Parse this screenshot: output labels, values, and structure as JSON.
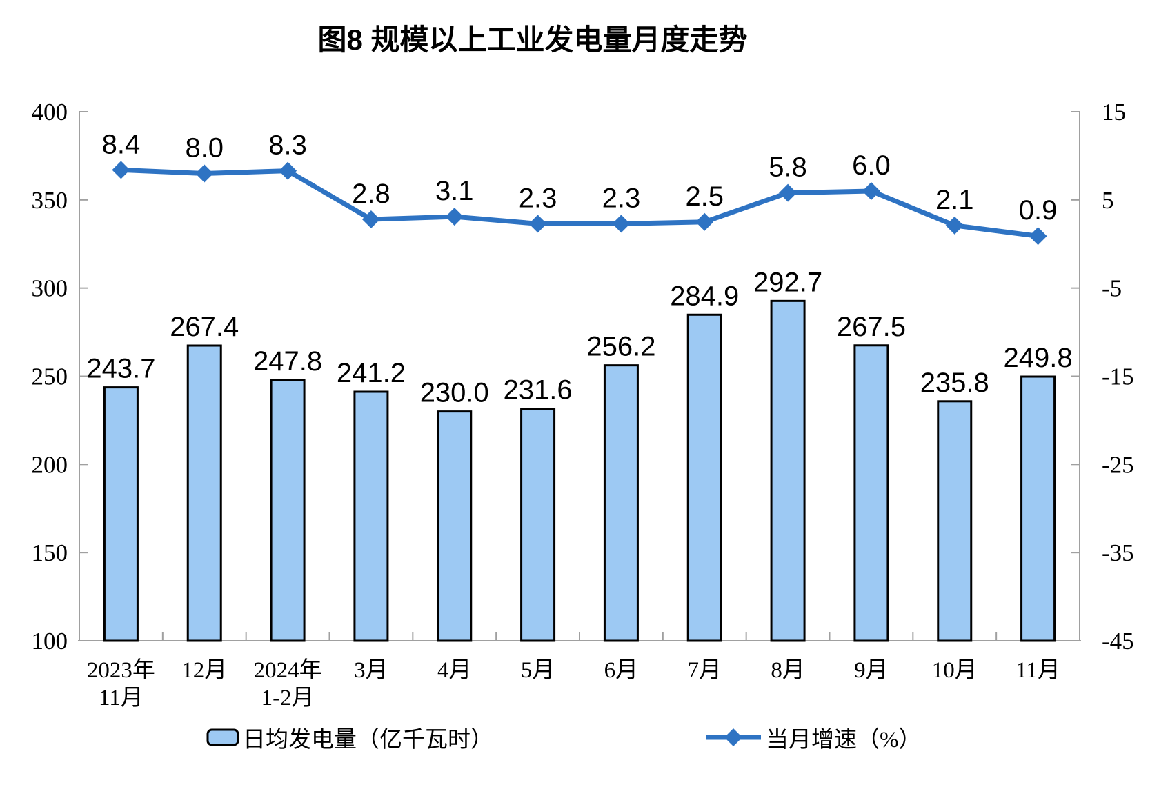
{
  "title": "图8 规模以上工业发电量月度走势",
  "colors": {
    "bar_fill": "#9DC9F3",
    "bar_border": "#000000",
    "line": "#2E73C3",
    "axis": "#A0A0A0",
    "text": "#000000",
    "background": "#FFFFFF"
  },
  "legend": {
    "bar_label": "日均发电量（亿千瓦时）",
    "line_label": "当月增速（%）"
  },
  "chart_data": {
    "type": "bar+line",
    "title": "图8 规模以上工业发电量月度走势",
    "categories": [
      [
        "2023年",
        "11月"
      ],
      [
        "12月"
      ],
      [
        "2024年",
        "1-2月"
      ],
      [
        "3月"
      ],
      [
        "4月"
      ],
      [
        "5月"
      ],
      [
        "6月"
      ],
      [
        "7月"
      ],
      [
        "8月"
      ],
      [
        "9月"
      ],
      [
        "10月"
      ],
      [
        "11月"
      ]
    ],
    "series": [
      {
        "name": "日均发电量（亿千瓦时）",
        "chart_type": "bar",
        "y_axis": "left",
        "values": [
          243.7,
          267.4,
          247.8,
          241.2,
          230.0,
          231.6,
          256.2,
          284.9,
          292.7,
          267.5,
          235.8,
          249.8
        ],
        "fill": "#9DC9F3",
        "border": "#000000"
      },
      {
        "name": "当月增速（%）",
        "chart_type": "line",
        "y_axis": "right",
        "values": [
          8.4,
          8.0,
          8.3,
          2.8,
          3.1,
          2.3,
          2.3,
          2.5,
          5.8,
          6.0,
          2.1,
          0.9
        ],
        "color": "#2E73C3",
        "marker": "diamond"
      }
    ],
    "left_axis": {
      "min": 100,
      "max": 400,
      "step": 50,
      "ticks": [
        400,
        350,
        300,
        250,
        200,
        150,
        100
      ]
    },
    "right_axis": {
      "min": -45,
      "max": 15,
      "step": 10,
      "ticks": [
        15,
        5,
        -5,
        -15,
        -25,
        -35,
        -45
      ]
    },
    "grid": false,
    "legend_position": "bottom",
    "value_labels": true,
    "value_label_decimals": 1
  }
}
